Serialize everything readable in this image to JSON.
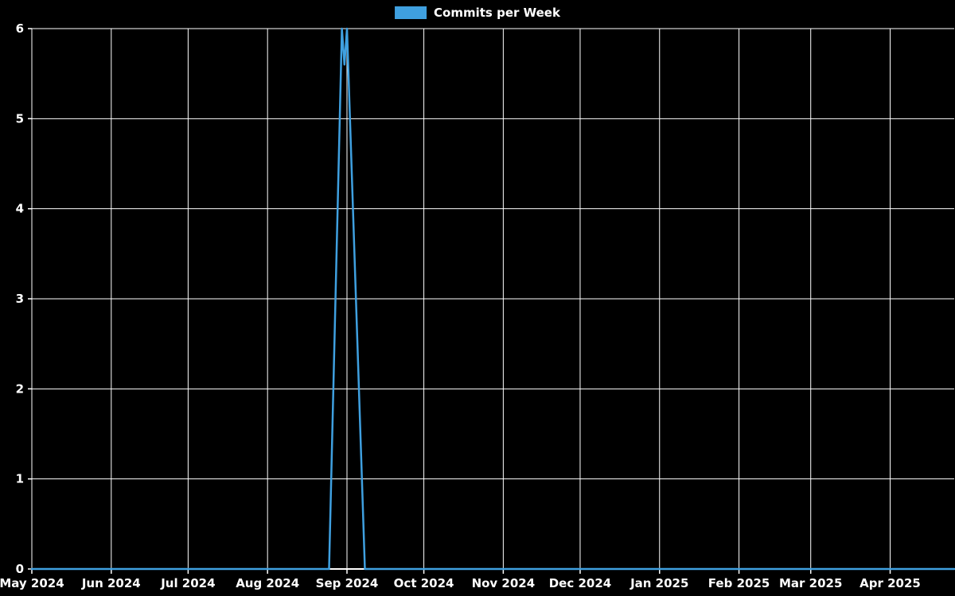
{
  "colors": {
    "background": "#000000",
    "grid": "#ffffff",
    "text": "#ffffff",
    "line": "#3fa0e0"
  },
  "chart_data": {
    "type": "line",
    "title": "",
    "legend_position": "top-center",
    "grid": true,
    "legend": [
      {
        "label": "Commits per Week",
        "color": "#3fa0e0"
      }
    ],
    "x_axis": {
      "start": "2024-05-01",
      "end": "2025-04-26",
      "ticks": [
        {
          "label": "May 2024",
          "date": "2024-05-01"
        },
        {
          "label": "Jun 2024",
          "date": "2024-06-01"
        },
        {
          "label": "Jul 2024",
          "date": "2024-07-01"
        },
        {
          "label": "Aug 2024",
          "date": "2024-08-01"
        },
        {
          "label": "Sep 2024",
          "date": "2024-09-01"
        },
        {
          "label": "Oct 2024",
          "date": "2024-10-01"
        },
        {
          "label": "Nov 2024",
          "date": "2024-11-01"
        },
        {
          "label": "Dec 2024",
          "date": "2024-12-01"
        },
        {
          "label": "Jan 2025",
          "date": "2025-01-01"
        },
        {
          "label": "Feb 2025",
          "date": "2025-02-01"
        },
        {
          "label": "Mar 2025",
          "date": "2025-03-01"
        },
        {
          "label": "Apr 2025",
          "date": "2025-04-01"
        }
      ]
    },
    "y_axis": {
      "min": 0,
      "max": 6,
      "ticks": [
        0,
        1,
        2,
        3,
        4,
        5,
        6
      ]
    },
    "series": [
      {
        "name": "Commits per Week",
        "points": [
          {
            "date": "2024-05-01",
            "value": 0
          },
          {
            "date": "2024-08-25",
            "value": 0
          },
          {
            "date": "2024-08-30",
            "value": 6
          },
          {
            "date": "2024-08-31",
            "value": 5.6
          },
          {
            "date": "2024-09-01",
            "value": 6
          },
          {
            "date": "2024-09-08",
            "value": 0
          },
          {
            "date": "2025-04-26",
            "value": 0
          }
        ]
      }
    ]
  }
}
